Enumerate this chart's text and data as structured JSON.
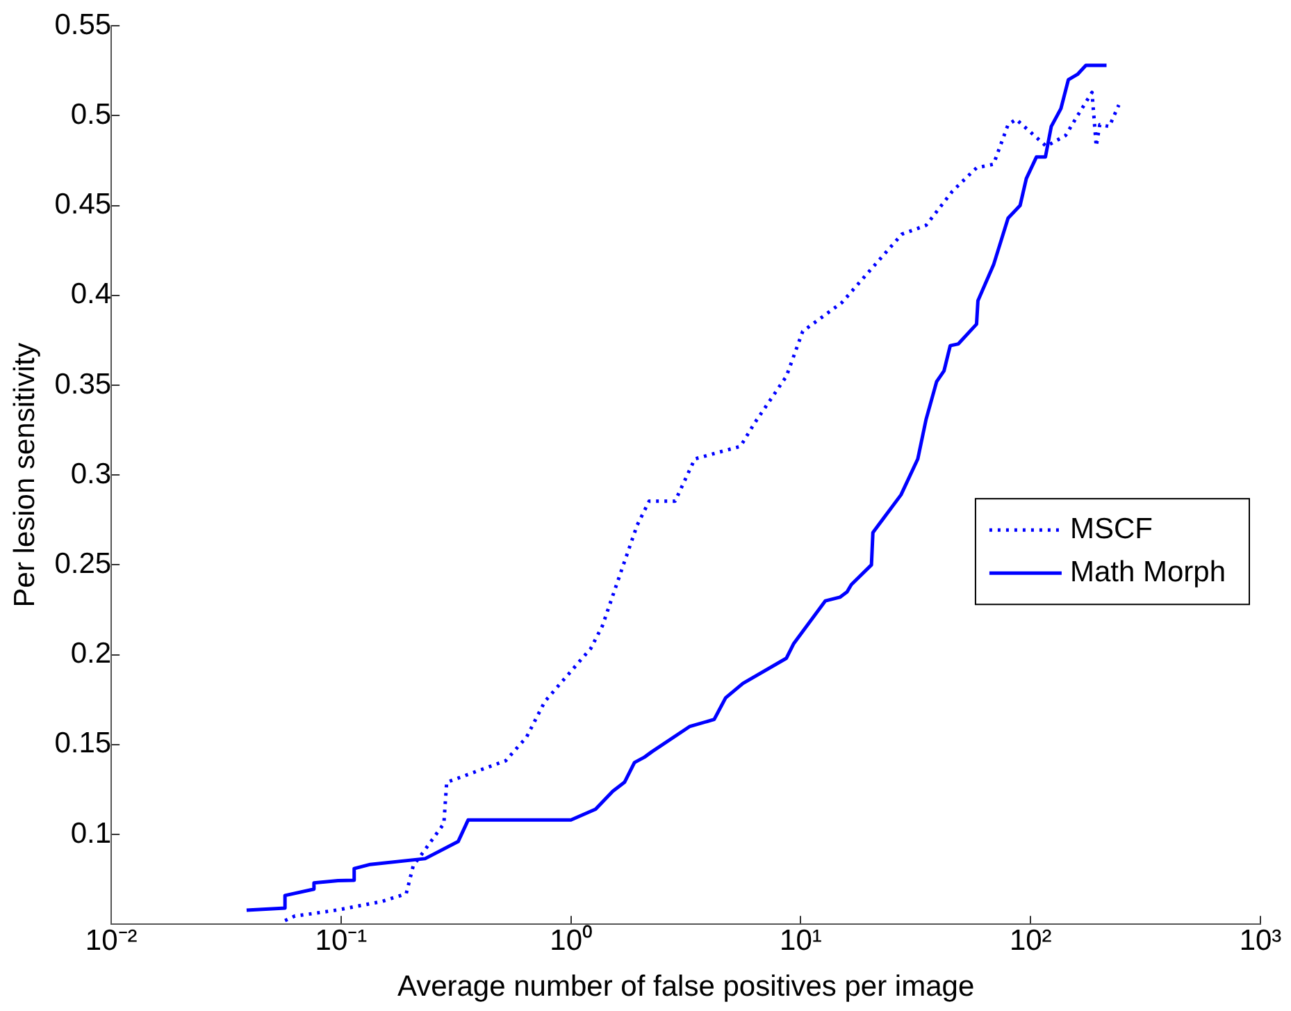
{
  "chart_data": {
    "type": "line",
    "xlabel": "Average number of false positives per image",
    "ylabel": "Per lesion sensitivity",
    "log": "x",
    "xlim": [
      0.01,
      1000
    ],
    "xticks": [
      {
        "value": 0.01,
        "label": "10⁻²"
      },
      {
        "value": 0.1,
        "label": "10⁻¹"
      },
      {
        "value": 1,
        "label": "10⁰"
      },
      {
        "value": 10,
        "label": "10¹"
      },
      {
        "value": 100,
        "label": "10²"
      },
      {
        "value": 1000,
        "label": "10³"
      }
    ],
    "ylim": [
      0.05,
      0.55
    ],
    "yticks": [
      0.1,
      0.15,
      0.2,
      0.25,
      0.3,
      0.35,
      0.4,
      0.45,
      0.5,
      0.55
    ],
    "grid": false,
    "legend": "right",
    "marker": "none",
    "series": [
      {
        "name": "MSCF",
        "color": "#0000ff",
        "line_style": "dotted",
        "x": [
          0.057,
          0.063,
          0.076,
          0.097,
          0.15,
          0.192,
          0.206,
          0.28,
          0.288,
          0.52,
          0.64,
          0.77,
          1.22,
          1.37,
          1.67,
          1.94,
          2.19,
          2.84,
          3.46,
          5.47,
          6.3,
          8.66,
          10.2,
          15.1,
          27.5,
          35.1,
          45.7,
          58.2,
          69,
          79.8,
          86.5,
          117,
          142,
          160,
          185,
          193,
          200,
          220,
          242
        ],
        "values": [
          0.052,
          0.0546,
          0.056,
          0.058,
          0.0626,
          0.067,
          0.0825,
          0.106,
          0.129,
          0.141,
          0.154,
          0.174,
          0.2035,
          0.216,
          0.248,
          0.272,
          0.2855,
          0.2855,
          0.309,
          0.316,
          0.329,
          0.355,
          0.38,
          0.396,
          0.434,
          0.439,
          0.458,
          0.471,
          0.473,
          0.495,
          0.498,
          0.483,
          0.489,
          0.5,
          0.513,
          0.483,
          0.495,
          0.494,
          0.506
        ]
      },
      {
        "name": "Math Morph",
        "color": "#0000ff",
        "line_style": "solid",
        "x": [
          0.0388,
          0.057,
          0.057,
          0.0762,
          0.0762,
          0.097,
          0.114,
          0.114,
          0.134,
          0.232,
          0.323,
          0.357,
          1.0,
          1.28,
          1.52,
          1.71,
          1.89,
          2.09,
          2.25,
          3.28,
          4.2,
          4.71,
          5.6,
          8.65,
          9.3,
          12.8,
          14.8,
          15.9,
          16.6,
          20.3,
          20.6,
          27.3,
          32.3,
          35.1,
          39,
          42,
          44.7,
          48.5,
          58.2,
          59,
          69,
          79.8,
          90,
          95.8,
          106,
          116,
          123,
          135.5,
          146,
          160,
          174,
          214
        ],
        "values": [
          0.0578,
          0.059,
          0.066,
          0.0695,
          0.073,
          0.0743,
          0.0745,
          0.081,
          0.0833,
          0.0865,
          0.096,
          0.108,
          0.108,
          0.114,
          0.124,
          0.129,
          0.14,
          0.143,
          0.146,
          0.16,
          0.164,
          0.176,
          0.184,
          0.198,
          0.206,
          0.23,
          0.232,
          0.235,
          0.239,
          0.25,
          0.268,
          0.289,
          0.309,
          0.331,
          0.352,
          0.358,
          0.372,
          0.373,
          0.384,
          0.397,
          0.417,
          0.443,
          0.45,
          0.465,
          0.477,
          0.477,
          0.494,
          0.504,
          0.52,
          0.523,
          0.528,
          0.528
        ]
      }
    ]
  }
}
